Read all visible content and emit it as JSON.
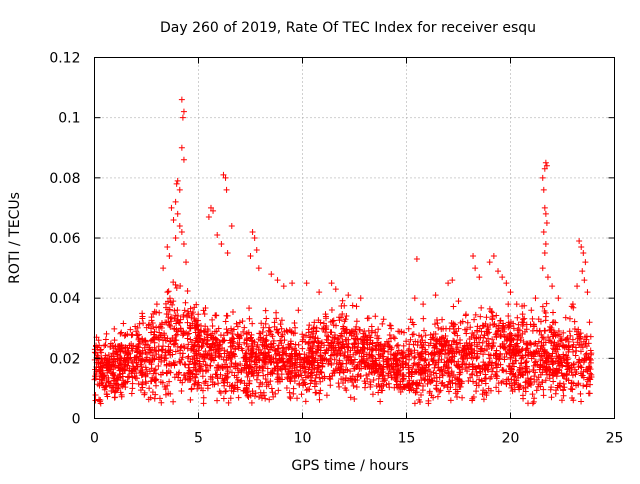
{
  "chart_data": {
    "type": "scatter",
    "title": "Day 260 of 2019, Rate Of TEC Index for receiver esqu",
    "xlabel": "GPS time / hours",
    "ylabel": "ROTI / TECUs",
    "xlim": [
      0,
      25
    ],
    "ylim": [
      0,
      0.12
    ],
    "x_ticks": [
      0,
      5,
      10,
      15,
      20,
      25
    ],
    "x_tick_labels": [
      "0",
      "5",
      "10",
      "15",
      "20",
      "25"
    ],
    "y_ticks": [
      0,
      0.02,
      0.04,
      0.06,
      0.08,
      0.1,
      0.12
    ],
    "y_tick_labels": [
      "0",
      "0.02",
      "0.04",
      "0.06",
      "0.08",
      "0.1",
      "0.12"
    ],
    "grid": true,
    "marker": "+",
    "series": [
      {
        "name": "ROTI",
        "color": "#ff0000",
        "x_range": [
          0,
          23.9
        ],
        "profile_hours": [
          0,
          1,
          2,
          3,
          4,
          5,
          6,
          7,
          8,
          9,
          10,
          11,
          12,
          13,
          14,
          15,
          16,
          17,
          18,
          19,
          20,
          21,
          22,
          23,
          23.9
        ],
        "profile_median": [
          0.016,
          0.017,
          0.019,
          0.022,
          0.027,
          0.022,
          0.02,
          0.02,
          0.019,
          0.02,
          0.019,
          0.022,
          0.023,
          0.021,
          0.019,
          0.017,
          0.019,
          0.02,
          0.02,
          0.024,
          0.022,
          0.02,
          0.021,
          0.02,
          0.018
        ],
        "profile_spread": [
          0.006,
          0.006,
          0.007,
          0.009,
          0.012,
          0.009,
          0.008,
          0.008,
          0.008,
          0.008,
          0.007,
          0.008,
          0.008,
          0.007,
          0.006,
          0.007,
          0.008,
          0.008,
          0.009,
          0.01,
          0.008,
          0.009,
          0.008,
          0.009,
          0.006
        ],
        "points": [
          [
            4.2,
            0.106
          ],
          [
            4.3,
            0.102
          ],
          [
            4.25,
            0.1
          ],
          [
            4.2,
            0.09
          ],
          [
            4.3,
            0.086
          ],
          [
            4.0,
            0.079
          ],
          [
            3.95,
            0.078
          ],
          [
            4.1,
            0.076
          ],
          [
            3.9,
            0.072
          ],
          [
            3.7,
            0.07
          ],
          [
            4.0,
            0.068
          ],
          [
            3.8,
            0.066
          ],
          [
            4.1,
            0.064
          ],
          [
            4.2,
            0.062
          ],
          [
            3.9,
            0.06
          ],
          [
            4.3,
            0.058
          ],
          [
            3.5,
            0.057
          ],
          [
            3.6,
            0.054
          ],
          [
            4.4,
            0.052
          ],
          [
            3.3,
            0.05
          ],
          [
            6.2,
            0.081
          ],
          [
            6.3,
            0.08
          ],
          [
            6.35,
            0.076
          ],
          [
            5.6,
            0.07
          ],
          [
            5.7,
            0.069
          ],
          [
            5.5,
            0.067
          ],
          [
            6.6,
            0.064
          ],
          [
            5.9,
            0.061
          ],
          [
            6.1,
            0.058
          ],
          [
            6.4,
            0.055
          ],
          [
            7.6,
            0.062
          ],
          [
            7.7,
            0.06
          ],
          [
            7.8,
            0.056
          ],
          [
            7.5,
            0.054
          ],
          [
            7.9,
            0.05
          ],
          [
            8.5,
            0.048
          ],
          [
            8.8,
            0.046
          ],
          [
            9.1,
            0.044
          ],
          [
            9.5,
            0.045
          ],
          [
            10.2,
            0.045
          ],
          [
            11.4,
            0.045
          ],
          [
            11.6,
            0.043
          ],
          [
            10.8,
            0.042
          ],
          [
            12.2,
            0.041
          ],
          [
            12.8,
            0.04
          ],
          [
            13.5,
            0.034
          ],
          [
            14.2,
            0.031
          ],
          [
            14.6,
            0.029
          ],
          [
            13.9,
            0.033
          ],
          [
            15.2,
            0.033
          ],
          [
            15.5,
            0.053
          ],
          [
            15.4,
            0.04
          ],
          [
            15.8,
            0.038
          ],
          [
            16.4,
            0.041
          ],
          [
            17.0,
            0.045
          ],
          [
            17.2,
            0.046
          ],
          [
            17.5,
            0.039
          ],
          [
            18.2,
            0.054
          ],
          [
            18.3,
            0.05
          ],
          [
            18.5,
            0.047
          ],
          [
            19.0,
            0.052
          ],
          [
            19.2,
            0.054
          ],
          [
            19.4,
            0.049
          ],
          [
            19.6,
            0.047
          ],
          [
            19.8,
            0.045
          ],
          [
            20.0,
            0.042
          ],
          [
            20.3,
            0.038
          ],
          [
            20.6,
            0.033
          ],
          [
            21.0,
            0.036
          ],
          [
            21.2,
            0.04
          ],
          [
            21.55,
            0.08
          ],
          [
            21.65,
            0.083
          ],
          [
            21.7,
            0.085
          ],
          [
            21.75,
            0.084
          ],
          [
            21.6,
            0.076
          ],
          [
            21.65,
            0.07
          ],
          [
            21.7,
            0.068
          ],
          [
            21.75,
            0.065
          ],
          [
            21.6,
            0.062
          ],
          [
            21.7,
            0.058
          ],
          [
            21.65,
            0.055
          ],
          [
            21.55,
            0.05
          ],
          [
            21.8,
            0.047
          ],
          [
            22.0,
            0.044
          ],
          [
            22.3,
            0.04
          ],
          [
            23.3,
            0.059
          ],
          [
            23.4,
            0.057
          ],
          [
            23.5,
            0.055
          ],
          [
            23.6,
            0.052
          ],
          [
            23.45,
            0.049
          ],
          [
            23.55,
            0.046
          ],
          [
            23.2,
            0.044
          ],
          [
            23.7,
            0.042
          ],
          [
            23.0,
            0.038
          ],
          [
            23.8,
            0.032
          ],
          [
            0.1,
            0.027
          ],
          [
            0.2,
            0.026
          ],
          [
            0.05,
            0.006
          ],
          [
            0.3,
            0.005
          ],
          [
            0.6,
            0.008
          ],
          [
            1.2,
            0.024
          ],
          [
            2.0,
            0.029
          ],
          [
            2.6,
            0.031
          ],
          [
            3.0,
            0.038
          ],
          [
            9.8,
            0.036
          ]
        ]
      }
    ]
  }
}
